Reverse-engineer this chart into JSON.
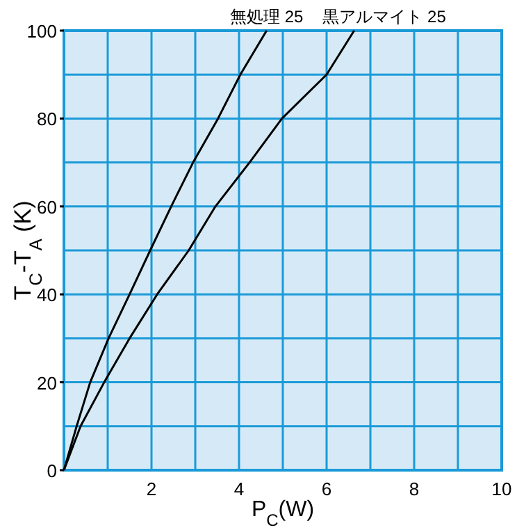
{
  "chart_data": {
    "type": "line",
    "xlabel": "P$_{C}$(W)",
    "ylabel": "T$_{C}$-T$_{A}$ (K)",
    "xlim": [
      0,
      10
    ],
    "ylim": [
      0,
      100
    ],
    "xticks": [
      {
        "value": 0,
        "label": null
      },
      {
        "value": 1,
        "label": null
      },
      2,
      {
        "value": 3,
        "label": null
      },
      4,
      {
        "value": 5,
        "label": null
      },
      6,
      {
        "value": 7,
        "label": null
      },
      8,
      {
        "value": 9,
        "label": null
      },
      10
    ],
    "yticks": [
      0,
      {
        "value": 10,
        "label": null
      },
      20,
      {
        "value": 30,
        "label": null
      },
      40,
      {
        "value": 50,
        "label": null
      },
      60,
      {
        "value": 70,
        "label": null
      },
      80,
      {
        "value": 90,
        "label": null
      },
      100
    ],
    "grid": true,
    "legend": false,
    "marker": "none",
    "line_style": "solid",
    "series": [
      {
        "name": "無処理 25",
        "color": "#000000",
        "x": [
          0,
          0.29,
          0.6,
          1.02,
          1.5,
          1.97,
          2.45,
          2.95,
          3.52,
          4.03,
          4.63
        ],
        "values": [
          0,
          10,
          20,
          30,
          40,
          50,
          60,
          70,
          80,
          90,
          100
        ]
      },
      {
        "name": "黒アルマイト 25",
        "color": "#000000",
        "x": [
          0,
          0.38,
          0.92,
          1.5,
          2.13,
          2.85,
          3.46,
          4.24,
          4.98,
          6.0,
          6.63
        ],
        "values": [
          0,
          10,
          20,
          30,
          40,
          50,
          60,
          70,
          80,
          90,
          100
        ]
      }
    ]
  }
}
